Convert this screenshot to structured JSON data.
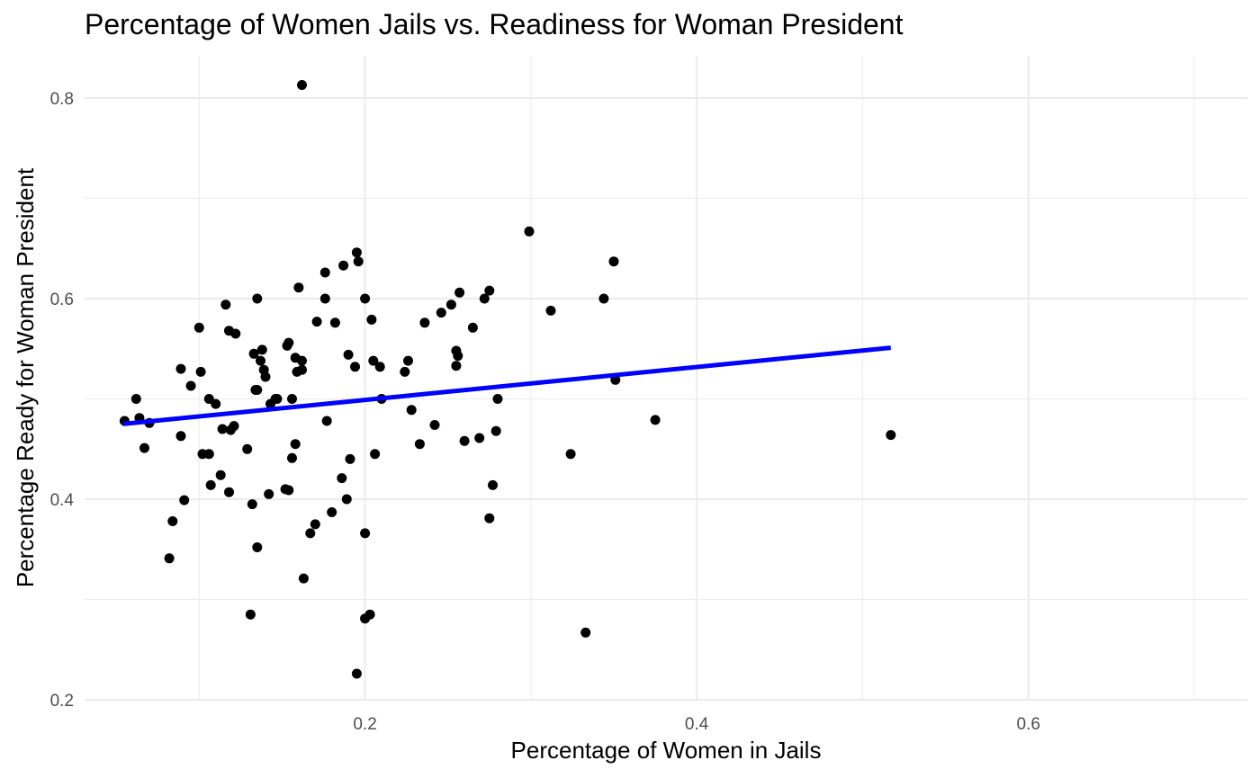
{
  "chart_data": {
    "type": "scatter",
    "title": "Percentage of Women Jails vs. Readiness for Woman President",
    "xlabel": "Percentage of Women in Jails",
    "ylabel": "Percentage Ready for Woman President",
    "xlim": [
      0.0305,
      0.7295
    ],
    "ylim": [
      0.2,
      0.8
    ],
    "x_ticks": [
      0.2,
      0.4,
      0.6
    ],
    "x_tick_labels": [
      "0.2",
      "0.4",
      "0.6"
    ],
    "y_ticks": [
      0.2,
      0.4,
      0.6,
      0.8
    ],
    "y_tick_labels": [
      "0.2",
      "0.4",
      "0.6",
      "0.8"
    ],
    "grid": true,
    "point_color": "#000000",
    "line_color": "#0000ff",
    "trend_line": {
      "x": [
        0.054,
        0.517
      ],
      "y": [
        0.475,
        0.551
      ]
    },
    "points": [
      {
        "x": 0.162,
        "y": 0.813
      },
      {
        "x": 0.299,
        "y": 0.667
      },
      {
        "x": 0.195,
        "y": 0.646
      },
      {
        "x": 0.196,
        "y": 0.637
      },
      {
        "x": 0.35,
        "y": 0.637
      },
      {
        "x": 0.187,
        "y": 0.633
      },
      {
        "x": 0.176,
        "y": 0.626
      },
      {
        "x": 0.16,
        "y": 0.611
      },
      {
        "x": 0.275,
        "y": 0.608
      },
      {
        "x": 0.257,
        "y": 0.606
      },
      {
        "x": 0.135,
        "y": 0.6
      },
      {
        "x": 0.176,
        "y": 0.6
      },
      {
        "x": 0.2,
        "y": 0.6
      },
      {
        "x": 0.272,
        "y": 0.6
      },
      {
        "x": 0.344,
        "y": 0.6
      },
      {
        "x": 0.116,
        "y": 0.594
      },
      {
        "x": 0.252,
        "y": 0.594
      },
      {
        "x": 0.312,
        "y": 0.588
      },
      {
        "x": 0.246,
        "y": 0.586
      },
      {
        "x": 0.204,
        "y": 0.579
      },
      {
        "x": 0.171,
        "y": 0.577
      },
      {
        "x": 0.182,
        "y": 0.576
      },
      {
        "x": 0.236,
        "y": 0.576
      },
      {
        "x": 0.1,
        "y": 0.571
      },
      {
        "x": 0.265,
        "y": 0.571
      },
      {
        "x": 0.118,
        "y": 0.568
      },
      {
        "x": 0.122,
        "y": 0.565
      },
      {
        "x": 0.153,
        "y": 0.553
      },
      {
        "x": 0.154,
        "y": 0.556
      },
      {
        "x": 0.138,
        "y": 0.549
      },
      {
        "x": 0.255,
        "y": 0.548
      },
      {
        "x": 0.133,
        "y": 0.545
      },
      {
        "x": 0.19,
        "y": 0.544
      },
      {
        "x": 0.256,
        "y": 0.543
      },
      {
        "x": 0.158,
        "y": 0.541
      },
      {
        "x": 0.162,
        "y": 0.538
      },
      {
        "x": 0.137,
        "y": 0.538
      },
      {
        "x": 0.205,
        "y": 0.538
      },
      {
        "x": 0.226,
        "y": 0.538
      },
      {
        "x": 0.255,
        "y": 0.533
      },
      {
        "x": 0.194,
        "y": 0.532
      },
      {
        "x": 0.209,
        "y": 0.532
      },
      {
        "x": 0.089,
        "y": 0.53
      },
      {
        "x": 0.139,
        "y": 0.529
      },
      {
        "x": 0.162,
        "y": 0.529
      },
      {
        "x": 0.159,
        "y": 0.527
      },
      {
        "x": 0.101,
        "y": 0.527
      },
      {
        "x": 0.224,
        "y": 0.527
      },
      {
        "x": 0.14,
        "y": 0.522
      },
      {
        "x": 0.351,
        "y": 0.519
      },
      {
        "x": 0.095,
        "y": 0.513
      },
      {
        "x": 0.134,
        "y": 0.509
      },
      {
        "x": 0.135,
        "y": 0.509
      },
      {
        "x": 0.062,
        "y": 0.5
      },
      {
        "x": 0.106,
        "y": 0.5
      },
      {
        "x": 0.146,
        "y": 0.5
      },
      {
        "x": 0.147,
        "y": 0.5
      },
      {
        "x": 0.156,
        "y": 0.5
      },
      {
        "x": 0.21,
        "y": 0.5
      },
      {
        "x": 0.28,
        "y": 0.5
      },
      {
        "x": 0.11,
        "y": 0.495
      },
      {
        "x": 0.143,
        "y": 0.495
      },
      {
        "x": 0.228,
        "y": 0.489
      },
      {
        "x": 0.064,
        "y": 0.481
      },
      {
        "x": 0.055,
        "y": 0.478
      },
      {
        "x": 0.07,
        "y": 0.476
      },
      {
        "x": 0.177,
        "y": 0.478
      },
      {
        "x": 0.375,
        "y": 0.479
      },
      {
        "x": 0.121,
        "y": 0.473
      },
      {
        "x": 0.242,
        "y": 0.474
      },
      {
        "x": 0.114,
        "y": 0.47
      },
      {
        "x": 0.119,
        "y": 0.469
      },
      {
        "x": 0.279,
        "y": 0.468
      },
      {
        "x": 0.517,
        "y": 0.464
      },
      {
        "x": 0.089,
        "y": 0.463
      },
      {
        "x": 0.269,
        "y": 0.461
      },
      {
        "x": 0.26,
        "y": 0.458
      },
      {
        "x": 0.158,
        "y": 0.455
      },
      {
        "x": 0.233,
        "y": 0.455
      },
      {
        "x": 0.067,
        "y": 0.451
      },
      {
        "x": 0.129,
        "y": 0.45
      },
      {
        "x": 0.102,
        "y": 0.445
      },
      {
        "x": 0.106,
        "y": 0.445
      },
      {
        "x": 0.206,
        "y": 0.445
      },
      {
        "x": 0.324,
        "y": 0.445
      },
      {
        "x": 0.156,
        "y": 0.441
      },
      {
        "x": 0.191,
        "y": 0.44
      },
      {
        "x": 0.113,
        "y": 0.424
      },
      {
        "x": 0.186,
        "y": 0.421
      },
      {
        "x": 0.107,
        "y": 0.414
      },
      {
        "x": 0.277,
        "y": 0.414
      },
      {
        "x": 0.152,
        "y": 0.41
      },
      {
        "x": 0.154,
        "y": 0.409
      },
      {
        "x": 0.118,
        "y": 0.407
      },
      {
        "x": 0.142,
        "y": 0.405
      },
      {
        "x": 0.189,
        "y": 0.4
      },
      {
        "x": 0.091,
        "y": 0.399
      },
      {
        "x": 0.132,
        "y": 0.395
      },
      {
        "x": 0.18,
        "y": 0.387
      },
      {
        "x": 0.275,
        "y": 0.381
      },
      {
        "x": 0.084,
        "y": 0.378
      },
      {
        "x": 0.17,
        "y": 0.375
      },
      {
        "x": 0.167,
        "y": 0.366
      },
      {
        "x": 0.2,
        "y": 0.366
      },
      {
        "x": 0.135,
        "y": 0.352
      },
      {
        "x": 0.082,
        "y": 0.341
      },
      {
        "x": 0.163,
        "y": 0.321
      },
      {
        "x": 0.131,
        "y": 0.285
      },
      {
        "x": 0.203,
        "y": 0.285
      },
      {
        "x": 0.2,
        "y": 0.281
      },
      {
        "x": 0.333,
        "y": 0.267
      },
      {
        "x": 0.195,
        "y": 0.226
      }
    ]
  }
}
